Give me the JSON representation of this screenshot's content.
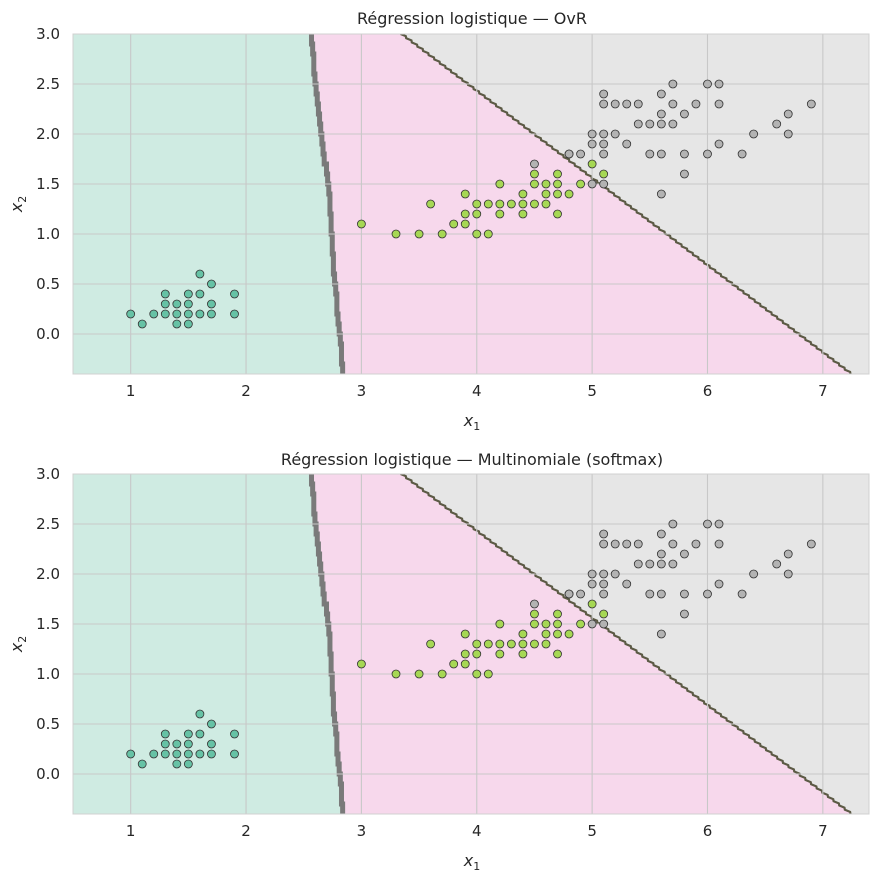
{
  "colors": {
    "region_setosa": "#cfebe2",
    "region_versicolor": "#f7d8ec",
    "region_virginica": "#e6e6e6",
    "pt_setosa": "#66c2a5",
    "pt_versicolor": "#a6d854",
    "pt_virginica": "#b3b3b3",
    "grid": "#c8c8c8",
    "edge": "#333333"
  },
  "chart_data": [
    {
      "type": "scatter",
      "title": "Régression logistique — OvR",
      "xlabel_main": "x",
      "xlabel_sub": "1",
      "ylabel_main": "x",
      "ylabel_sub": "2",
      "xlim": [
        0.5,
        7.4
      ],
      "ylim": [
        -0.4,
        3.0
      ],
      "xticks": [
        1,
        2,
        3,
        4,
        5,
        6,
        7
      ],
      "xtick_labels": [
        "1",
        "2",
        "3",
        "4",
        "5",
        "6",
        "7"
      ],
      "yticks": [
        0.0,
        0.5,
        1.0,
        1.5,
        2.0,
        2.5,
        3.0
      ],
      "ytick_labels": [
        "0.0",
        "0.5",
        "1.0",
        "1.5",
        "2.0",
        "2.5",
        "3.0"
      ],
      "boundary_setosa": [
        [
          2.55,
          3.0
        ],
        [
          2.6,
          2.35
        ],
        [
          2.7,
          1.5
        ],
        [
          2.75,
          0.6
        ],
        [
          2.83,
          -0.4
        ]
      ],
      "boundary_virginica": [
        [
          3.35,
          3.0
        ],
        [
          7.25,
          -0.4
        ]
      ]
    },
    {
      "type": "scatter",
      "title": "Régression logistique — Multinomiale (softmax)",
      "xlabel_main": "x",
      "xlabel_sub": "1",
      "ylabel_main": "x",
      "ylabel_sub": "2",
      "xlim": [
        0.5,
        7.4
      ],
      "ylim": [
        -0.4,
        3.0
      ],
      "xticks": [
        1,
        2,
        3,
        4,
        5,
        6,
        7
      ],
      "xtick_labels": [
        "1",
        "2",
        "3",
        "4",
        "5",
        "6",
        "7"
      ],
      "yticks": [
        0.0,
        0.5,
        1.0,
        1.5,
        2.0,
        2.5,
        3.0
      ],
      "ytick_labels": [
        "0.0",
        "0.5",
        "1.0",
        "1.5",
        "2.0",
        "2.5",
        "3.0"
      ],
      "boundary_setosa": [
        [
          2.55,
          3.0
        ],
        [
          2.6,
          2.35
        ],
        [
          2.7,
          1.5
        ],
        [
          2.75,
          0.6
        ],
        [
          2.83,
          -0.4
        ]
      ],
      "boundary_virginica": [
        [
          3.35,
          3.0
        ],
        [
          7.25,
          -0.4
        ]
      ]
    }
  ],
  "points": {
    "setosa": [
      [
        1.0,
        0.2
      ],
      [
        1.1,
        0.1
      ],
      [
        1.2,
        0.2
      ],
      [
        1.3,
        0.2
      ],
      [
        1.3,
        0.3
      ],
      [
        1.3,
        0.4
      ],
      [
        1.4,
        0.1
      ],
      [
        1.4,
        0.2
      ],
      [
        1.4,
        0.3
      ],
      [
        1.5,
        0.1
      ],
      [
        1.5,
        0.2
      ],
      [
        1.5,
        0.3
      ],
      [
        1.5,
        0.4
      ],
      [
        1.6,
        0.2
      ],
      [
        1.6,
        0.4
      ],
      [
        1.6,
        0.6
      ],
      [
        1.7,
        0.2
      ],
      [
        1.7,
        0.3
      ],
      [
        1.7,
        0.5
      ],
      [
        1.9,
        0.2
      ],
      [
        1.9,
        0.4
      ]
    ],
    "versicolor": [
      [
        3.0,
        1.1
      ],
      [
        3.3,
        1.0
      ],
      [
        3.5,
        1.0
      ],
      [
        3.6,
        1.3
      ],
      [
        3.7,
        1.0
      ],
      [
        3.8,
        1.1
      ],
      [
        3.9,
        1.1
      ],
      [
        3.9,
        1.2
      ],
      [
        3.9,
        1.4
      ],
      [
        4.0,
        1.0
      ],
      [
        4.0,
        1.2
      ],
      [
        4.0,
        1.3
      ],
      [
        4.1,
        1.0
      ],
      [
        4.1,
        1.3
      ],
      [
        4.2,
        1.2
      ],
      [
        4.2,
        1.3
      ],
      [
        4.2,
        1.5
      ],
      [
        4.3,
        1.3
      ],
      [
        4.4,
        1.2
      ],
      [
        4.4,
        1.3
      ],
      [
        4.4,
        1.4
      ],
      [
        4.5,
        1.3
      ],
      [
        4.5,
        1.5
      ],
      [
        4.5,
        1.6
      ],
      [
        4.6,
        1.3
      ],
      [
        4.6,
        1.4
      ],
      [
        4.6,
        1.5
      ],
      [
        4.7,
        1.2
      ],
      [
        4.7,
        1.4
      ],
      [
        4.7,
        1.5
      ],
      [
        4.7,
        1.6
      ],
      [
        4.8,
        1.4
      ],
      [
        4.8,
        1.8
      ],
      [
        4.9,
        1.5
      ],
      [
        5.0,
        1.7
      ],
      [
        5.1,
        1.6
      ]
    ],
    "virginica": [
      [
        4.5,
        1.7
      ],
      [
        4.8,
        1.8
      ],
      [
        4.9,
        1.8
      ],
      [
        5.0,
        1.5
      ],
      [
        5.0,
        1.9
      ],
      [
        5.0,
        2.0
      ],
      [
        5.1,
        1.5
      ],
      [
        5.1,
        1.8
      ],
      [
        5.1,
        1.9
      ],
      [
        5.1,
        2.0
      ],
      [
        5.1,
        2.3
      ],
      [
        5.1,
        2.4
      ],
      [
        5.2,
        2.0
      ],
      [
        5.2,
        2.3
      ],
      [
        5.3,
        1.9
      ],
      [
        5.3,
        2.3
      ],
      [
        5.4,
        2.1
      ],
      [
        5.4,
        2.3
      ],
      [
        5.5,
        1.8
      ],
      [
        5.5,
        2.1
      ],
      [
        5.6,
        1.4
      ],
      [
        5.6,
        1.8
      ],
      [
        5.6,
        2.1
      ],
      [
        5.6,
        2.2
      ],
      [
        5.6,
        2.4
      ],
      [
        5.7,
        2.1
      ],
      [
        5.7,
        2.3
      ],
      [
        5.7,
        2.5
      ],
      [
        5.8,
        1.6
      ],
      [
        5.8,
        1.8
      ],
      [
        5.8,
        2.2
      ],
      [
        5.9,
        2.3
      ],
      [
        6.0,
        1.8
      ],
      [
        6.0,
        2.5
      ],
      [
        6.1,
        1.9
      ],
      [
        6.1,
        2.3
      ],
      [
        6.1,
        2.5
      ],
      [
        6.3,
        1.8
      ],
      [
        6.4,
        2.0
      ],
      [
        6.6,
        2.1
      ],
      [
        6.7,
        2.0
      ],
      [
        6.7,
        2.2
      ],
      [
        6.9,
        2.3
      ]
    ]
  }
}
